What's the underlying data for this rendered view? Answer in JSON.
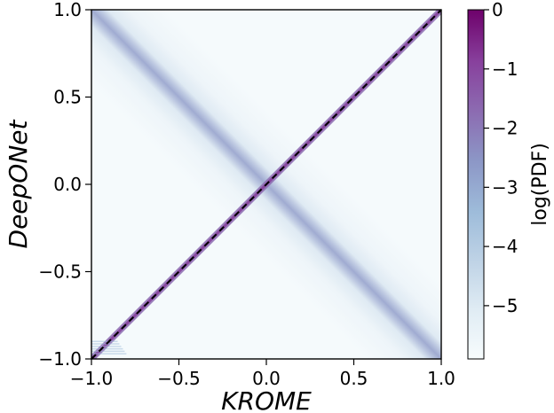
{
  "chart_data": {
    "type": "heatmap",
    "xlabel": "KROME",
    "ylabel": "DeepONet",
    "xlim": [
      -1.0,
      1.0
    ],
    "ylim": [
      -1.0,
      1.0
    ],
    "x_ticks": [
      "−1.0",
      "−0.5",
      "0.0",
      "0.5",
      "1.0"
    ],
    "y_ticks": [
      "−1.0",
      "−0.5",
      "0.0",
      "0.5",
      "1.0"
    ],
    "x_tick_values": [
      -1.0,
      -0.5,
      0.0,
      0.5,
      1.0
    ],
    "y_tick_values": [
      -1.0,
      -0.5,
      0.0,
      0.5,
      1.0
    ],
    "reference_line": {
      "style": "dashed",
      "color": "#000000",
      "points": [
        [
          -1.0,
          -1.0
        ],
        [
          1.0,
          1.0
        ]
      ]
    },
    "colorbar": {
      "label": "log(PDF)",
      "range": [
        -5.9,
        0
      ],
      "ticks": [
        "0",
        "−1",
        "−2",
        "−3",
        "−4",
        "−5"
      ],
      "tick_values": [
        0,
        -1,
        -2,
        -3,
        -4,
        -5
      ],
      "colormap": "BuPu",
      "colors": [
        "#f7fcfd",
        "#e0ecf4",
        "#bfd3e6",
        "#9ebcda",
        "#8c96c6",
        "#8c6bb1",
        "#88419d",
        "#6e016b"
      ]
    },
    "density_description_points": [
      {
        "x": -1.0,
        "y": -1.0,
        "logpdf": -2.0
      },
      {
        "x": 0.0,
        "y": 0.0,
        "logpdf": -1.0
      },
      {
        "x": 1.0,
        "y": 1.0,
        "logpdf": -2.0
      }
    ],
    "grid": false
  }
}
